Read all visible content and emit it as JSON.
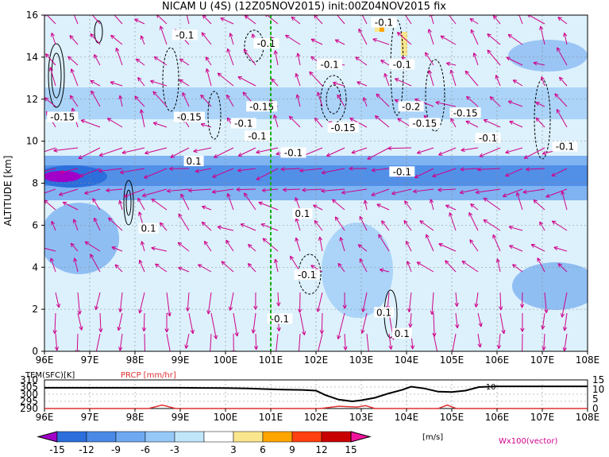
{
  "title": "NICAM U (4S) (12Z05NOV2015) init:00Z04NOV2015 fix",
  "chart_data": [
    {
      "type": "heatmap",
      "name": "main",
      "ylabel": "ALTITUDE [km]",
      "xlim": [
        96,
        108
      ],
      "ylim": [
        0,
        16
      ],
      "x_ticks": [
        "96E",
        "97E",
        "98E",
        "99E",
        "100E",
        "101E",
        "102E",
        "103E",
        "104E",
        "105E",
        "106E",
        "107E",
        "108E"
      ],
      "y_ticks": [
        "0",
        "2",
        "4",
        "6",
        "8",
        "10",
        "12",
        "14",
        "16"
      ],
      "marker_line_x": 101,
      "contour_labels": [
        {
          "text": "-0.1",
          "x": 99.1,
          "y": 15.0
        },
        {
          "text": "-0.1",
          "x": 103.5,
          "y": 15.6
        },
        {
          "text": "-0.1",
          "x": 100.9,
          "y": 14.6
        },
        {
          "text": "-0.1",
          "x": 102.3,
          "y": 13.6
        },
        {
          "text": "-0.1",
          "x": 103.9,
          "y": 13.6
        },
        {
          "text": "-0.15",
          "x": 96.4,
          "y": 11.1
        },
        {
          "text": "-0.15",
          "x": 99.2,
          "y": 11.1
        },
        {
          "text": "-0.15",
          "x": 100.8,
          "y": 11.6
        },
        {
          "text": "-0.1",
          "x": 100.4,
          "y": 10.8
        },
        {
          "text": "-0.1",
          "x": 100.7,
          "y": 10.2
        },
        {
          "text": "-0.15",
          "x": 102.6,
          "y": 10.6
        },
        {
          "text": "-0.2",
          "x": 104.1,
          "y": 11.6
        },
        {
          "text": "-0.15",
          "x": 104.4,
          "y": 10.8
        },
        {
          "text": "-0.15",
          "x": 105.3,
          "y": 11.3
        },
        {
          "text": "-0.1",
          "x": 105.8,
          "y": 10.1
        },
        {
          "text": "-0.1",
          "x": 107.5,
          "y": 9.7
        },
        {
          "text": "-0.1",
          "x": 101.5,
          "y": 9.4
        },
        {
          "text": "0.1",
          "x": 99.3,
          "y": 9.0
        },
        {
          "text": "-0.1",
          "x": 103.9,
          "y": 8.5
        },
        {
          "text": "0.1",
          "x": 101.7,
          "y": 6.5
        },
        {
          "text": "0.1",
          "x": 98.3,
          "y": 5.8
        },
        {
          "text": "-0.1",
          "x": 101.8,
          "y": 3.6
        },
        {
          "text": "0.1",
          "x": 103.5,
          "y": 1.8
        },
        {
          "text": "-0.1",
          "x": 101.2,
          "y": 1.5
        },
        {
          "text": "0.1",
          "x": 103.9,
          "y": 0.8
        }
      ]
    },
    {
      "type": "line",
      "name": "surface",
      "left_label": "TEM(SFC)[K]",
      "right_label": "PRCP [mm/hr]",
      "left_ticks": [
        "310",
        "305",
        "300",
        "295",
        "290"
      ],
      "right_ticks": [
        "15",
        "10",
        "5",
        "0"
      ],
      "right_inline_label": "10",
      "x": [
        96,
        97,
        98,
        99,
        99.5,
        100,
        100.5,
        101,
        101.3,
        101.7,
        102,
        102.2,
        102.5,
        102.8,
        103,
        103.3,
        103.6,
        103.9,
        104.1,
        104.4,
        104.7,
        105,
        105.3,
        105.6,
        106,
        106.5,
        107,
        108
      ],
      "tem": [
        304.5,
        304.5,
        304.5,
        304.5,
        304.4,
        304.3,
        304.0,
        303.5,
        303.2,
        303.0,
        302.5,
        299.5,
        296.2,
        295.0,
        295.8,
        297.5,
        300.5,
        303.0,
        305.3,
        304.0,
        301.8,
        301.5,
        302.5,
        305.0,
        305.5,
        305.5,
        305.5,
        305.5
      ],
      "prcp_x": [
        96,
        98.3,
        98.6,
        98.9,
        101,
        102.1,
        102.5,
        102.9,
        103.1,
        103.3,
        104.5,
        104.7,
        104.9,
        105.1,
        108
      ],
      "prcp": [
        0,
        0,
        1.8,
        0,
        0,
        0,
        1.2,
        0.8,
        1.5,
        0,
        0,
        0,
        1.8,
        0,
        0
      ]
    }
  ],
  "legend": {
    "levels": [
      "-15",
      "-12",
      "-9",
      "-6",
      "-3",
      "3",
      "6",
      "9",
      "12",
      "15"
    ],
    "colors": [
      "#a000c8",
      "#2c6fdc",
      "#4a8ae6",
      "#6ea8f0",
      "#96c8f7",
      "#c0e6fa",
      "#ffffff",
      "#fae68c",
      "#ffa500",
      "#ff4010",
      "#c80000",
      "#f0149c"
    ],
    "unit": "[m/s]",
    "vector_label": "Wx100(vector)"
  }
}
